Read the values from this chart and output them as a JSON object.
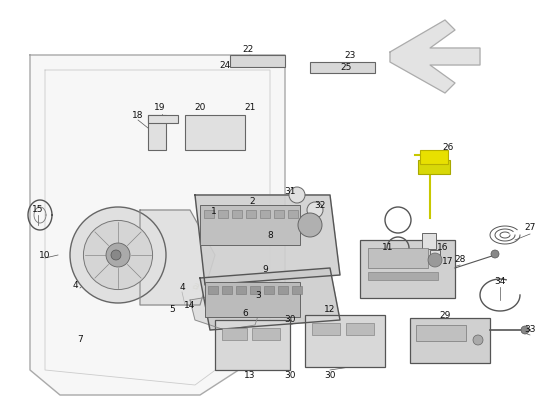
{
  "bg_color": "#ffffff",
  "line_color": "#333333",
  "label_color": "#111111",
  "part_fill": "#e8e8e8",
  "part_edge": "#555555",
  "watermark_color": "#c8c8a8",
  "highlight_color": "#e8e000",
  "highlight_edge": "#b8b000",
  "arrow_fill": "#d8d8d8",
  "arrow_edge": "#aaaaaa",
  "door_fill": "#f0f0f0",
  "door_edge": "#aaaaaa",
  "speaker_outer_fill": "#e0e0e0",
  "speaker_mid_fill": "#cccccc",
  "speaker_inner_fill": "#999999"
}
